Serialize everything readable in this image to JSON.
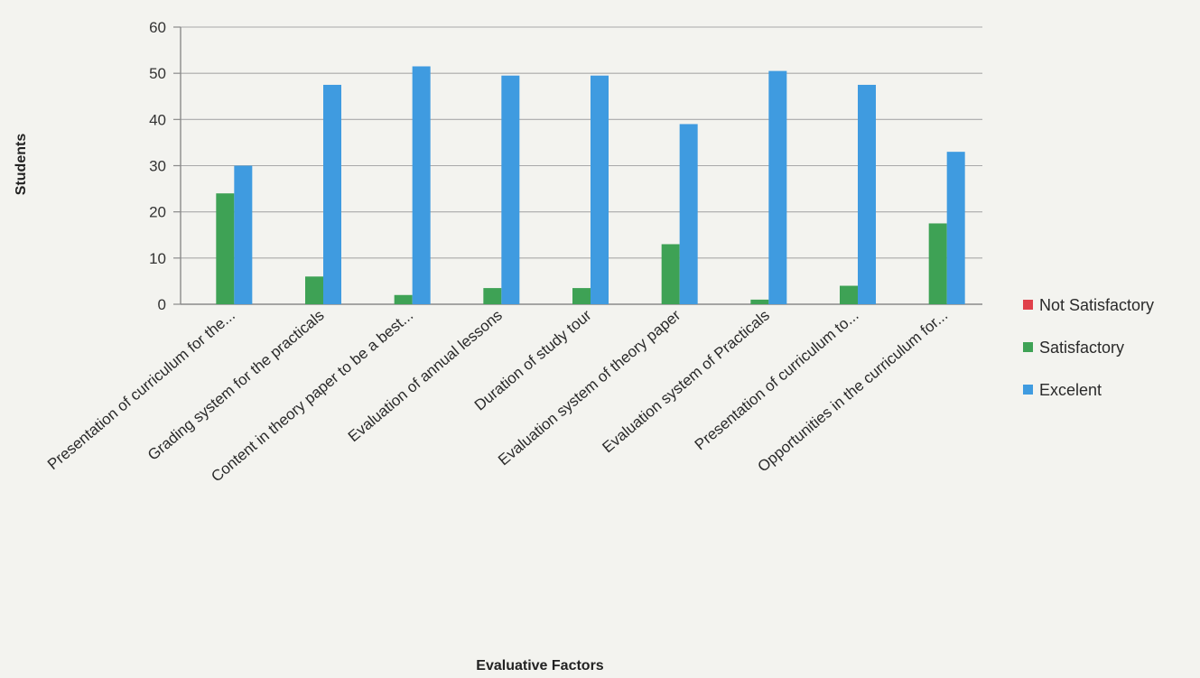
{
  "chart_data": {
    "type": "bar",
    "xlabel": "Evaluative Factors",
    "ylabel": "Students",
    "ylim": [
      0,
      60
    ],
    "yticks": [
      0,
      10,
      20,
      30,
      40,
      50,
      60
    ],
    "grid": true,
    "legend_position": "right",
    "categories": [
      "Presentation of curriculum for the...",
      "Grading system for the practicals",
      "Content in theory paper to be a best...",
      "Evaluation of annual lessons",
      "Duration of study tour",
      "Evaluation system of theory paper",
      "Evaluation system of Practicals",
      "Presentation of curriculum to...",
      "Opportunities in the curriculum for..."
    ],
    "series": [
      {
        "name": "Not Satisfactory",
        "color": "#e0404a",
        "values": [
          0,
          0,
          0,
          0,
          0,
          0,
          0,
          0,
          0
        ]
      },
      {
        "name": "Satisfactory",
        "color": "#3ea255",
        "values": [
          24,
          6,
          2,
          3.5,
          3.5,
          13,
          1,
          4,
          17.5
        ]
      },
      {
        "name": "Excelent",
        "color": "#3f9be0",
        "values": [
          30,
          47.5,
          51.5,
          49.5,
          49.5,
          39,
          50.5,
          47.5,
          33
        ]
      }
    ]
  }
}
